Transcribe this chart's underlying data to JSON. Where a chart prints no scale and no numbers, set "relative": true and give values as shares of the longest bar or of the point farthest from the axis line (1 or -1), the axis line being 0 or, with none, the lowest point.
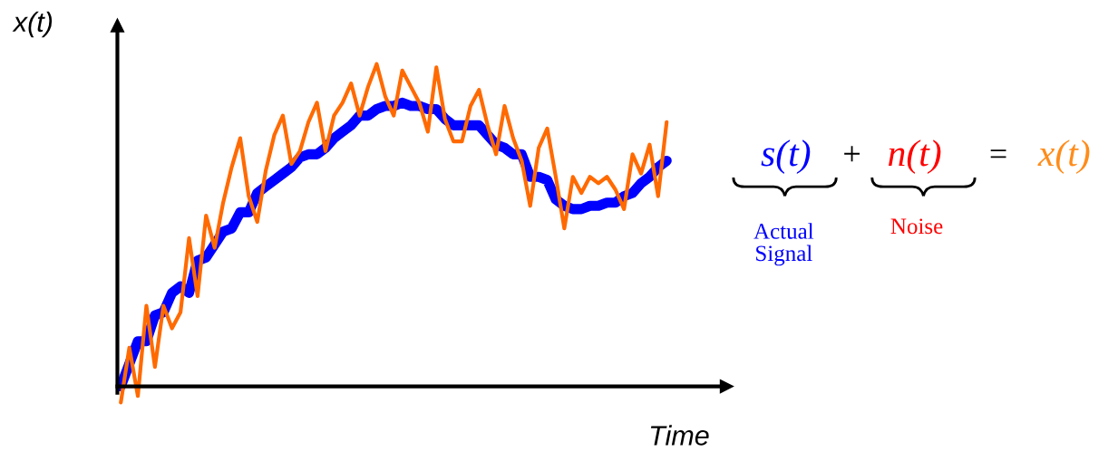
{
  "chart_data": {
    "type": "line",
    "relative": true,
    "xlabel": "Time",
    "ylabel": "x(t)",
    "legend": false,
    "marker": "none",
    "categories": [
      null,
      null,
      null,
      null,
      null,
      null,
      null,
      null,
      null,
      null,
      null,
      null,
      null,
      null,
      null,
      null,
      null,
      null,
      null,
      null,
      null,
      null,
      null,
      null,
      null,
      null,
      null,
      null,
      null,
      null,
      null,
      null,
      null,
      null,
      null,
      null,
      null,
      null,
      null,
      null,
      null,
      null,
      null,
      null,
      null,
      null,
      null,
      null,
      null,
      null,
      null,
      null,
      null,
      null,
      null,
      null,
      null,
      null,
      null,
      null,
      null,
      null,
      null,
      null,
      null
    ],
    "series": [
      {
        "color": "#0000ff",
        "values": [
          0,
          0.07,
          0.14,
          0.14,
          0.22,
          0.23,
          0.29,
          0.31,
          0.29,
          0.39,
          0.4,
          0.44,
          0.48,
          0.49,
          0.54,
          0.54,
          0.6,
          0.62,
          0.64,
          0.66,
          0.68,
          0.71,
          0.72,
          0.72,
          0.74,
          0.77,
          0.79,
          0.81,
          0.84,
          0.84,
          0.86,
          0.87,
          0.87,
          0.88,
          0.87,
          0.87,
          0.86,
          0.86,
          0.83,
          0.81,
          0.81,
          0.81,
          0.81,
          0.78,
          0.75,
          0.74,
          0.72,
          0.72,
          0.65,
          0.65,
          0.64,
          0.58,
          0.56,
          0.55,
          0.55,
          0.56,
          0.56,
          0.57,
          0.57,
          0.59,
          0.6,
          0.63,
          0.65,
          0.68,
          0.7
        ]
      },
      {
        "color": "#ff6a00",
        "values": [
          -0.05,
          0.12,
          -0.03,
          0.25,
          0.06,
          0.25,
          0.18,
          0.23,
          0.46,
          0.28,
          0.53,
          0.43,
          0.57,
          0.68,
          0.77,
          0.59,
          0.51,
          0.67,
          0.78,
          0.84,
          0.69,
          0.73,
          0.82,
          0.88,
          0.73,
          0.84,
          0.88,
          0.94,
          0.84,
          0.93,
          1.0,
          0.9,
          0.84,
          0.98,
          0.93,
          0.88,
          0.79,
          0.99,
          0.83,
          0.76,
          0.76,
          0.87,
          0.92,
          0.81,
          0.72,
          0.87,
          0.77,
          0.7,
          0.56,
          0.74,
          0.8,
          0.65,
          0.49,
          0.65,
          0.6,
          0.65,
          0.63,
          0.65,
          0.61,
          0.55,
          0.72,
          0.66,
          0.75,
          0.59,
          0.82
        ]
      }
    ],
    "annotations": [
      "s(t)",
      "+",
      "n(t)",
      "=",
      "x(t)",
      "Actual\nSignal",
      "Noise"
    ]
  }
}
